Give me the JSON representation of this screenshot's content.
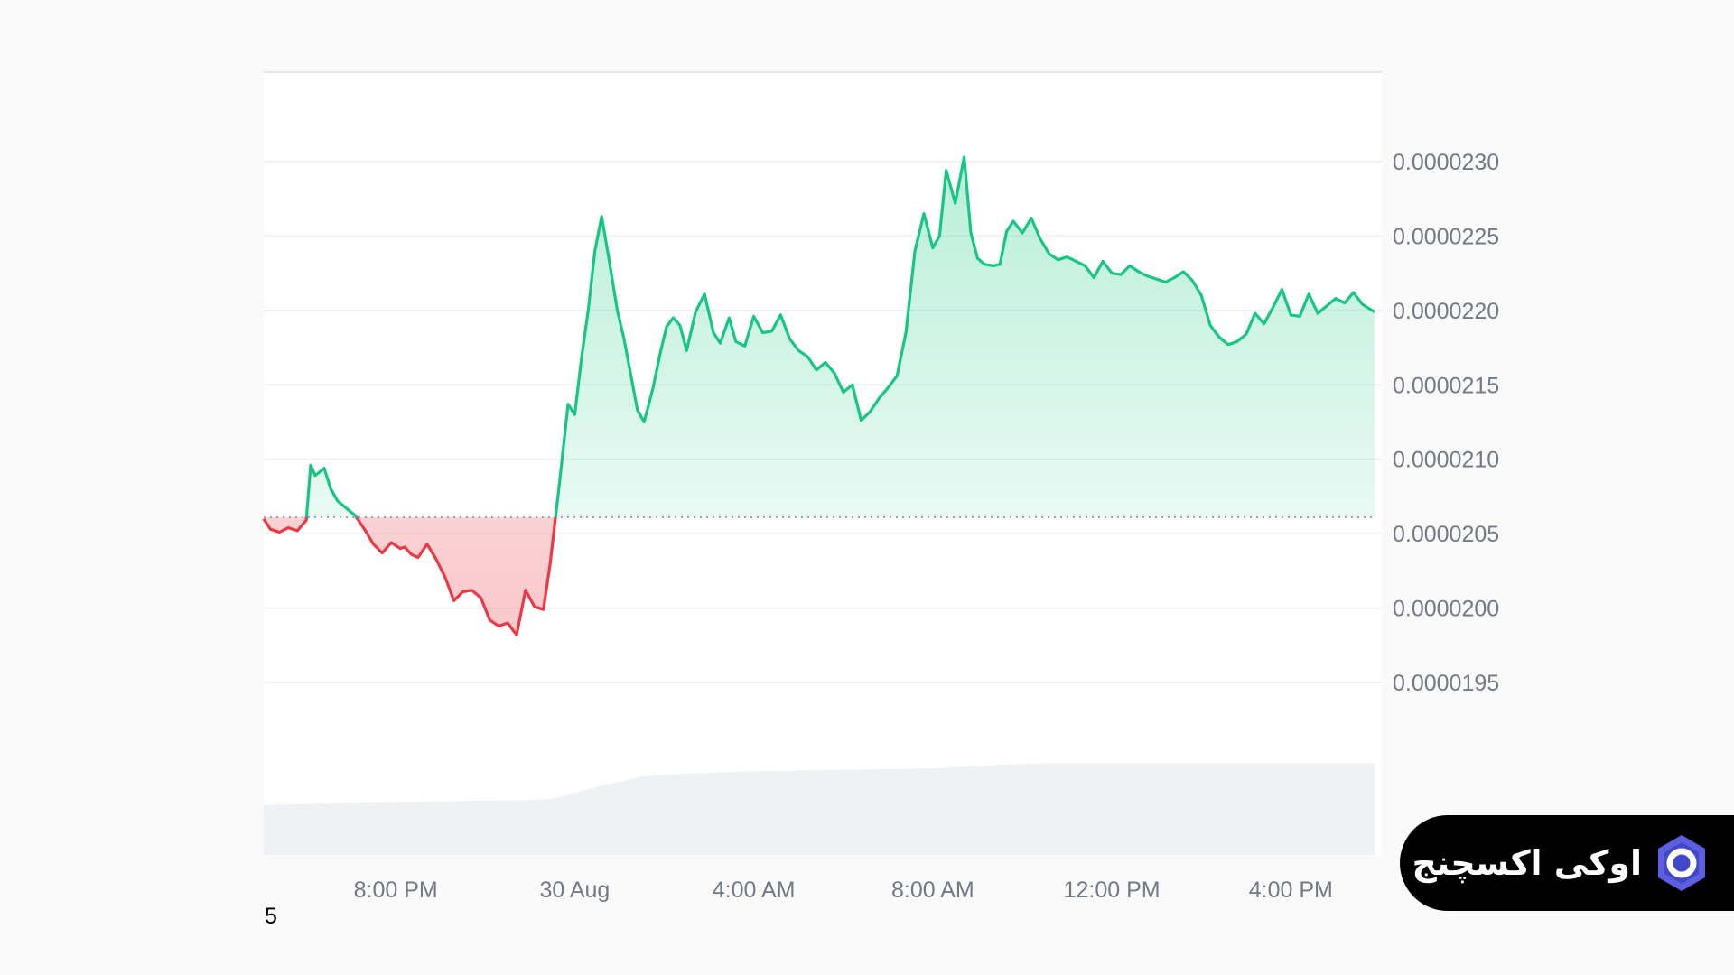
{
  "chart_data": {
    "type": "area",
    "y_ticks": [
      "0.0000230",
      "0.0000225",
      "0.0000220",
      "0.0000215",
      "0.0000210",
      "0.0000205",
      "0.0000200",
      "0.0000195"
    ],
    "x_ticks": [
      "8:00 PM",
      "30 Aug",
      "4:00 AM",
      "8:00 AM",
      "12:00 PM",
      "4:00 PM"
    ],
    "ylim": [
      1.91e-05,
      2.36e-05
    ],
    "baseline": 2.061e-05,
    "x_range_hours": [
      -6.95,
      17.87
    ],
    "price_series": {
      "x_hours": [
        -6.95,
        -6.8,
        -6.6,
        -6.4,
        -6.2,
        -6.0,
        -5.9,
        -5.8,
        -5.6,
        -5.45,
        -5.3,
        -5.1,
        -4.9,
        -4.7,
        -4.5,
        -4.3,
        -4.1,
        -3.9,
        -3.8,
        -3.65,
        -3.5,
        -3.3,
        -3.1,
        -2.9,
        -2.7,
        -2.5,
        -2.3,
        -2.1,
        -1.9,
        -1.7,
        -1.5,
        -1.3,
        -1.1,
        -0.9,
        -0.7,
        -0.55,
        -0.35,
        -0.15,
        0.0,
        0.15,
        0.3,
        0.45,
        0.6,
        0.75,
        0.95,
        1.1,
        1.25,
        1.4,
        1.55,
        1.75,
        1.9,
        2.05,
        2.2,
        2.35,
        2.5,
        2.7,
        2.9,
        3.1,
        3.25,
        3.45,
        3.6,
        3.8,
        4.0,
        4.2,
        4.4,
        4.6,
        4.8,
        5.0,
        5.2,
        5.4,
        5.6,
        5.8,
        6.0,
        6.2,
        6.4,
        6.6,
        6.8,
        7.0,
        7.2,
        7.4,
        7.6,
        7.8,
        8.0,
        8.15,
        8.3,
        8.5,
        8.7,
        8.85,
        9.0,
        9.15,
        9.35,
        9.5,
        9.65,
        9.8,
        10.0,
        10.2,
        10.4,
        10.6,
        10.8,
        11.0,
        11.2,
        11.4,
        11.6,
        11.8,
        12.0,
        12.2,
        12.4,
        12.6,
        12.8,
        13.0,
        13.2,
        13.4,
        13.6,
        13.8,
        14.0,
        14.2,
        14.4,
        14.6,
        14.8,
        15.0,
        15.2,
        15.4,
        15.6,
        15.8,
        16.0,
        16.2,
        16.4,
        16.6,
        16.8,
        17.0,
        17.2,
        17.4,
        17.6,
        17.87
      ],
      "values": [
        2.06e-05,
        2.053e-05,
        2.051e-05,
        2.054e-05,
        2.052e-05,
        2.059e-05,
        2.096e-05,
        2.089e-05,
        2.094e-05,
        2.08e-05,
        2.072e-05,
        2.067e-05,
        2.062e-05,
        2.053e-05,
        2.043e-05,
        2.037e-05,
        2.044e-05,
        2.04e-05,
        2.041e-05,
        2.036e-05,
        2.034e-05,
        2.043e-05,
        2.033e-05,
        2.021e-05,
        2.005e-05,
        2.011e-05,
        2.012e-05,
        2.007e-05,
        1.992e-05,
        1.988e-05,
        1.99e-05,
        1.982e-05,
        2.012e-05,
        2.001e-05,
        1.999e-05,
        2.03e-05,
        2.082e-05,
        2.137e-05,
        2.13e-05,
        2.168e-05,
        2.2e-05,
        2.24e-05,
        2.263e-05,
        2.237e-05,
        2.2e-05,
        2.181e-05,
        2.157e-05,
        2.133e-05,
        2.125e-05,
        2.148e-05,
        2.17e-05,
        2.189e-05,
        2.195e-05,
        2.19e-05,
        2.173e-05,
        2.199e-05,
        2.211e-05,
        2.185e-05,
        2.178e-05,
        2.195e-05,
        2.179e-05,
        2.176e-05,
        2.196e-05,
        2.185e-05,
        2.186e-05,
        2.197e-05,
        2.181e-05,
        2.173e-05,
        2.169e-05,
        2.16e-05,
        2.165e-05,
        2.158e-05,
        2.145e-05,
        2.15e-05,
        2.126e-05,
        2.132e-05,
        2.141e-05,
        2.148e-05,
        2.156e-05,
        2.185e-05,
        2.24e-05,
        2.265e-05,
        2.242e-05,
        2.25e-05,
        2.294e-05,
        2.272e-05,
        2.303e-05,
        2.252e-05,
        2.235e-05,
        2.231e-05,
        2.23e-05,
        2.231e-05,
        2.253e-05,
        2.26e-05,
        2.252e-05,
        2.262e-05,
        2.248e-05,
        2.238e-05,
        2.234e-05,
        2.236e-05,
        2.233e-05,
        2.23e-05,
        2.222e-05,
        2.233e-05,
        2.225e-05,
        2.224e-05,
        2.23e-05,
        2.226e-05,
        2.223e-05,
        2.221e-05,
        2.219e-05,
        2.222e-05,
        2.226e-05,
        2.22e-05,
        2.21e-05,
        2.19e-05,
        2.182e-05,
        2.177e-05,
        2.179e-05,
        2.184e-05,
        2.198e-05,
        2.191e-05,
        2.202e-05,
        2.214e-05,
        2.197e-05,
        2.196e-05,
        2.211e-05,
        2.198e-05,
        2.203e-05,
        2.208e-05,
        2.205e-05,
        2.212e-05,
        2.204e-05,
        2.199e-05
      ]
    },
    "volume_series": {
      "x_hours": [
        -6.95,
        -5.0,
        -3.0,
        -1.0,
        -0.5,
        0.5,
        1.5,
        2.5,
        4.0,
        6.0,
        8.0,
        9.5,
        10.5,
        12.0,
        14.0,
        16.0,
        17.87
      ],
      "relative_values": [
        0.38,
        0.4,
        0.41,
        0.42,
        0.43,
        0.52,
        0.6,
        0.62,
        0.64,
        0.65,
        0.66,
        0.69,
        0.7,
        0.7,
        0.7,
        0.7,
        0.7
      ]
    },
    "colors": {
      "up": "#16c784",
      "down": "#ea3943",
      "grid": "#eff2f5",
      "volume": "#eff2f5"
    },
    "grid": true
  },
  "corner_label": "5",
  "badge": {
    "text": "اوکی اکسچنج",
    "logo_icon": "okex-hexagon-logo",
    "logo_color": "#5b5fe0"
  }
}
